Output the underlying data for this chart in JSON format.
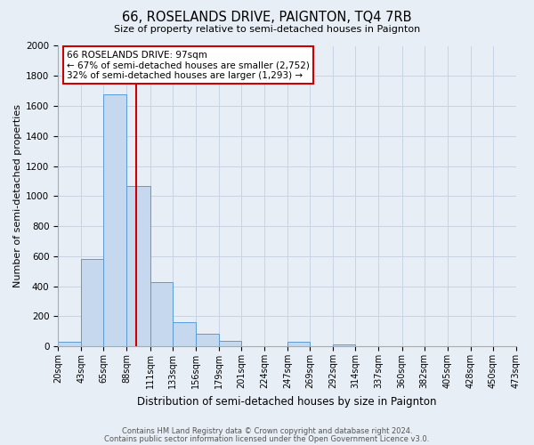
{
  "title": "66, ROSELANDS DRIVE, PAIGNTON, TQ4 7RB",
  "subtitle": "Size of property relative to semi-detached houses in Paignton",
  "xlabel": "Distribution of semi-detached houses by size in Paignton",
  "ylabel": "Number of semi-detached properties",
  "footer_line1": "Contains HM Land Registry data © Crown copyright and database right 2024.",
  "footer_line2": "Contains public sector information licensed under the Open Government Licence v3.0.",
  "bin_labels": [
    "20sqm",
    "43sqm",
    "65sqm",
    "88sqm",
    "111sqm",
    "133sqm",
    "156sqm",
    "179sqm",
    "201sqm",
    "224sqm",
    "247sqm",
    "269sqm",
    "292sqm",
    "314sqm",
    "337sqm",
    "360sqm",
    "382sqm",
    "405sqm",
    "428sqm",
    "450sqm",
    "473sqm"
  ],
  "bin_edges": [
    20,
    43,
    65,
    88,
    111,
    133,
    156,
    179,
    201,
    224,
    247,
    269,
    292,
    314,
    337,
    360,
    382,
    405,
    428,
    450,
    473
  ],
  "bar_heights": [
    30,
    580,
    1680,
    1070,
    430,
    160,
    85,
    35,
    0,
    0,
    30,
    0,
    15,
    0,
    0,
    0,
    0,
    0,
    0,
    0
  ],
  "bar_color": "#c5d8ed",
  "bar_edge_color": "#5b9bd5",
  "property_size": 97,
  "red_line_color": "#cc0000",
  "ylim": [
    0,
    2000
  ],
  "yticks": [
    0,
    200,
    400,
    600,
    800,
    1000,
    1200,
    1400,
    1600,
    1800,
    2000
  ],
  "annotation_text_line1": "66 ROSELANDS DRIVE: 97sqm",
  "annotation_text_line2": "← 67% of semi-detached houses are smaller (2,752)",
  "annotation_text_line3": "32% of semi-detached houses are larger (1,293) →",
  "annotation_box_color": "#ffffff",
  "annotation_box_edge": "#cc0000",
  "grid_color": "#c8d4e4",
  "background_color": "#e8eef6"
}
